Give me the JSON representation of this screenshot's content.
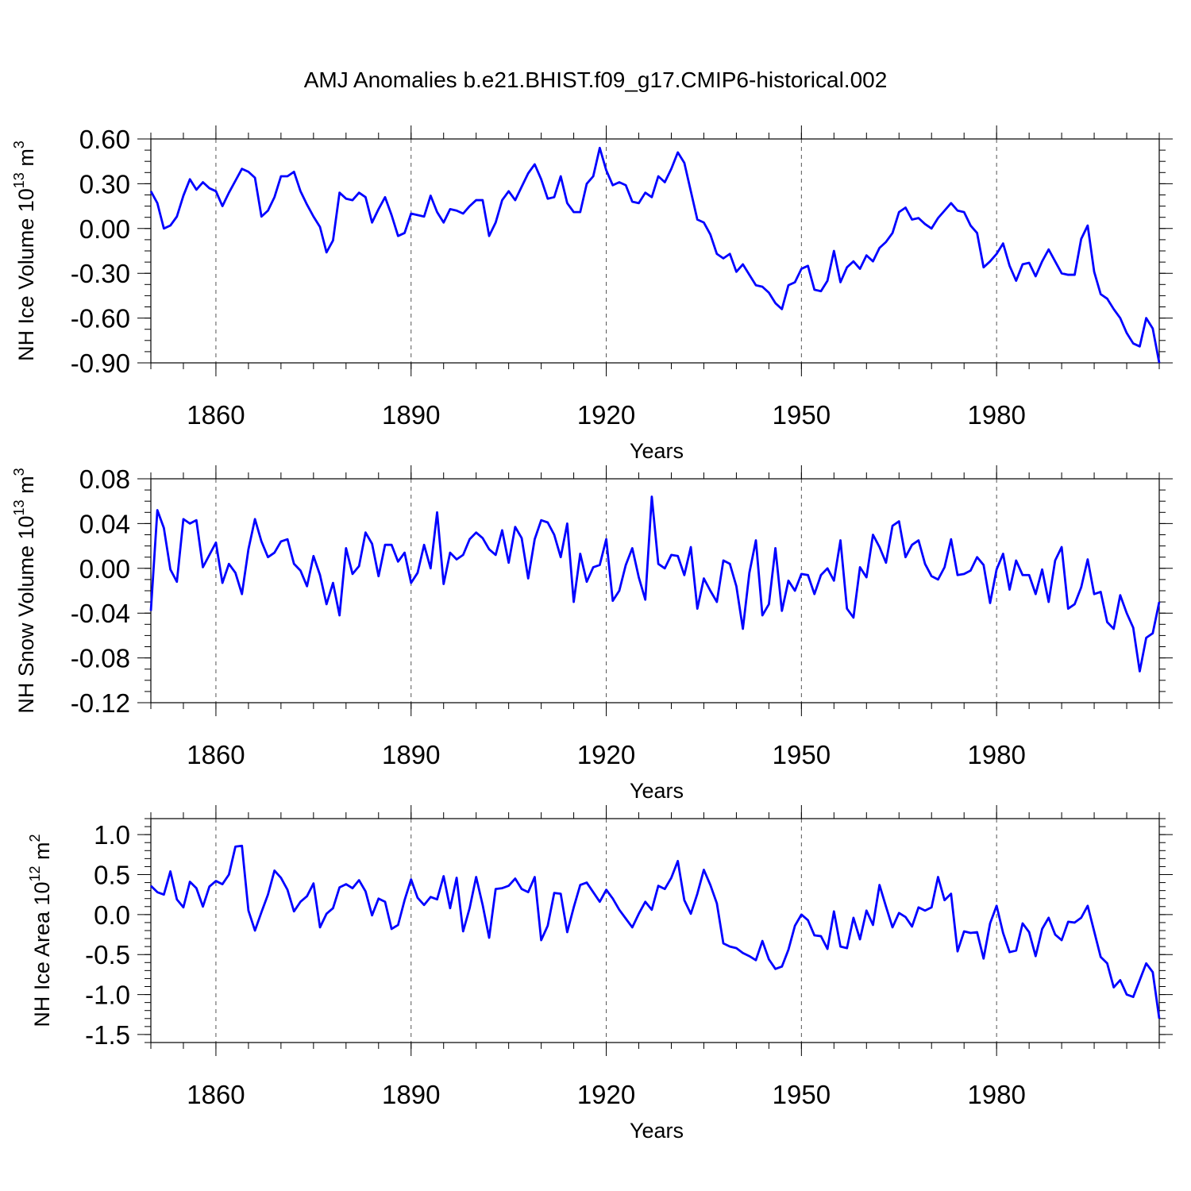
{
  "title": "AMJ Anomalies b.e21.BHIST.f09_g17.CMIP6-historical.002",
  "colors": {
    "line": "#0000ff",
    "axis": "#000000",
    "grid": "#555555"
  },
  "chart_data": [
    {
      "type": "line",
      "title": "AMJ Anomalies b.e21.BHIST.f09_g17.CMIP6-historical.002",
      "xlabel": "Years",
      "ylabel": {
        "base": "NH Ice Volume 10",
        "exp1": "13",
        "mid": " m",
        "exp2": "3"
      },
      "xlim": [
        1850,
        2005
      ],
      "ylim": [
        -0.9,
        0.6
      ],
      "xticks": [
        1860,
        1890,
        1920,
        1950,
        1980
      ],
      "xtick_labels": [
        "1860",
        "1890",
        "1920",
        "1950",
        "1980"
      ],
      "yticks": [
        0.6,
        0.3,
        0.0,
        -0.3,
        -0.6,
        -0.9
      ],
      "ytick_labels": [
        "0.60",
        "0.30",
        "0.00",
        "-0.30",
        "-0.60",
        "-0.90"
      ],
      "yminor_step": 0.075,
      "grid": "vertical dashed at major x ticks",
      "x_start": 1850,
      "values": [
        0.25,
        0.17,
        0.0,
        0.02,
        0.08,
        0.22,
        0.33,
        0.26,
        0.31,
        0.27,
        0.25,
        0.15,
        0.24,
        0.32,
        0.4,
        0.38,
        0.34,
        0.08,
        0.12,
        0.21,
        0.35,
        0.35,
        0.38,
        0.25,
        0.16,
        0.08,
        0.01,
        -0.16,
        -0.08,
        0.24,
        0.2,
        0.19,
        0.24,
        0.21,
        0.04,
        0.13,
        0.21,
        0.09,
        -0.05,
        -0.03,
        0.1,
        0.09,
        0.08,
        0.22,
        0.11,
        0.04,
        0.13,
        0.12,
        0.1,
        0.15,
        0.19,
        0.19,
        -0.05,
        0.04,
        0.19,
        0.25,
        0.19,
        0.28,
        0.37,
        0.43,
        0.33,
        0.2,
        0.21,
        0.35,
        0.17,
        0.11,
        0.11,
        0.3,
        0.35,
        0.54,
        0.39,
        0.29,
        0.31,
        0.29,
        0.18,
        0.17,
        0.24,
        0.21,
        0.35,
        0.31,
        0.4,
        0.51,
        0.44,
        0.25,
        0.06,
        0.04,
        -0.04,
        -0.17,
        -0.2,
        -0.17,
        -0.29,
        -0.24,
        -0.31,
        -0.38,
        -0.39,
        -0.43,
        -0.5,
        -0.54,
        -0.38,
        -0.36,
        -0.27,
        -0.25,
        -0.41,
        -0.42,
        -0.35,
        -0.15,
        -0.36,
        -0.26,
        -0.22,
        -0.27,
        -0.18,
        -0.22,
        -0.13,
        -0.09,
        -0.03,
        0.11,
        0.14,
        0.06,
        0.07,
        0.03,
        0.0,
        0.07,
        0.12,
        0.17,
        0.12,
        0.11,
        0.02,
        -0.03,
        -0.26,
        -0.22,
        -0.17,
        -0.1,
        -0.25,
        -0.35,
        -0.24,
        -0.23,
        -0.32,
        -0.22,
        -0.14,
        -0.22,
        -0.3,
        -0.31,
        -0.31,
        -0.07,
        0.02,
        -0.29,
        -0.44,
        -0.47,
        -0.54,
        -0.6,
        -0.7,
        -0.77,
        -0.79,
        -0.6,
        -0.67,
        -0.9
      ]
    },
    {
      "type": "line",
      "xlabel": "Years",
      "ylabel": {
        "base": "NH Snow Volume 10",
        "exp1": "13",
        "mid": " m",
        "exp2": "3"
      },
      "xlim": [
        1850,
        2005
      ],
      "ylim": [
        -0.12,
        0.08
      ],
      "xticks": [
        1860,
        1890,
        1920,
        1950,
        1980
      ],
      "xtick_labels": [
        "1860",
        "1890",
        "1920",
        "1950",
        "1980"
      ],
      "yticks": [
        0.08,
        0.04,
        0.0,
        -0.04,
        -0.08,
        -0.12
      ],
      "ytick_labels": [
        "0.08",
        "0.04",
        "0.00",
        "-0.04",
        "-0.08",
        "-0.12"
      ],
      "yminor_step": 0.01,
      "grid": "vertical dashed at major x ticks",
      "x_start": 1850,
      "values": [
        -0.038,
        0.052,
        0.036,
        -0.001,
        -0.012,
        0.044,
        0.04,
        0.043,
        0.001,
        0.012,
        0.023,
        -0.013,
        0.004,
        -0.004,
        -0.023,
        0.017,
        0.044,
        0.024,
        0.01,
        0.014,
        0.024,
        0.026,
        0.004,
        -0.002,
        -0.016,
        0.011,
        -0.006,
        -0.032,
        -0.013,
        -0.042,
        0.018,
        -0.005,
        0.002,
        0.032,
        0.022,
        -0.007,
        0.021,
        0.021,
        0.006,
        0.014,
        -0.013,
        -0.004,
        0.021,
        0.0,
        0.05,
        -0.014,
        0.014,
        0.008,
        0.012,
        0.026,
        0.032,
        0.027,
        0.017,
        0.012,
        0.034,
        0.005,
        0.037,
        0.027,
        -0.009,
        0.026,
        0.043,
        0.041,
        0.03,
        0.01,
        0.04,
        -0.03,
        0.013,
        -0.012,
        0.001,
        0.003,
        0.026,
        -0.029,
        -0.02,
        0.003,
        0.018,
        -0.008,
        -0.028,
        0.064,
        0.004,
        0.0,
        0.012,
        0.011,
        -0.006,
        0.019,
        -0.036,
        -0.009,
        -0.02,
        -0.03,
        0.007,
        0.004,
        -0.016,
        -0.054,
        -0.004,
        0.025,
        -0.042,
        -0.032,
        0.018,
        -0.038,
        -0.011,
        -0.02,
        -0.005,
        -0.006,
        -0.023,
        -0.006,
        0.0,
        -0.011,
        0.025,
        -0.036,
        -0.044,
        0.001,
        -0.008,
        0.03,
        0.019,
        0.005,
        0.038,
        0.042,
        0.01,
        0.021,
        0.025,
        0.004,
        -0.007,
        -0.01,
        0.001,
        0.026,
        -0.006,
        -0.005,
        -0.002,
        0.01,
        0.003,
        -0.031,
        -0.001,
        0.013,
        -0.019,
        0.007,
        -0.006,
        -0.006,
        -0.023,
        -0.001,
        -0.03,
        0.007,
        0.019,
        -0.036,
        -0.032,
        -0.017,
        0.008,
        -0.023,
        -0.021,
        -0.048,
        -0.054,
        -0.024,
        -0.04,
        -0.053,
        -0.092,
        -0.062,
        -0.058,
        -0.03
      ]
    },
    {
      "type": "line",
      "xlabel": "Years",
      "ylabel": {
        "base": "NH Ice Area 10",
        "exp1": "12",
        "mid": " m",
        "exp2": "2"
      },
      "xlim": [
        1850,
        2005
      ],
      "ylim": [
        -1.6,
        1.2
      ],
      "xticks": [
        1860,
        1890,
        1920,
        1950,
        1980
      ],
      "xtick_labels": [
        "1860",
        "1890",
        "1920",
        "1950",
        "1980"
      ],
      "yticks": [
        1.0,
        0.5,
        0.0,
        -0.5,
        -1.0,
        -1.5
      ],
      "ytick_labels": [
        "1.0",
        "0.5",
        "0.0",
        "-0.5",
        "-1.0",
        "-1.5"
      ],
      "yminor_step": 0.1,
      "grid": "vertical dashed at major x ticks",
      "x_start": 1850,
      "values": [
        0.36,
        0.28,
        0.25,
        0.54,
        0.19,
        0.09,
        0.41,
        0.33,
        0.1,
        0.35,
        0.42,
        0.38,
        0.5,
        0.85,
        0.86,
        0.05,
        -0.2,
        0.03,
        0.25,
        0.55,
        0.46,
        0.31,
        0.04,
        0.16,
        0.23,
        0.39,
        -0.16,
        0.01,
        0.08,
        0.34,
        0.38,
        0.33,
        0.43,
        0.29,
        -0.01,
        0.2,
        0.16,
        -0.18,
        -0.13,
        0.18,
        0.44,
        0.21,
        0.12,
        0.22,
        0.19,
        0.48,
        0.08,
        0.46,
        -0.21,
        0.08,
        0.47,
        0.12,
        -0.29,
        0.32,
        0.33,
        0.36,
        0.45,
        0.32,
        0.28,
        0.47,
        -0.32,
        -0.14,
        0.27,
        0.26,
        -0.22,
        0.09,
        0.37,
        0.4,
        0.28,
        0.16,
        0.31,
        0.2,
        0.06,
        -0.05,
        -0.16,
        0.01,
        0.16,
        0.06,
        0.36,
        0.32,
        0.46,
        0.67,
        0.18,
        0.01,
        0.26,
        0.56,
        0.37,
        0.14,
        -0.36,
        -0.4,
        -0.42,
        -0.48,
        -0.52,
        -0.57,
        -0.33,
        -0.56,
        -0.68,
        -0.65,
        -0.44,
        -0.14,
        0.0,
        -0.07,
        -0.26,
        -0.27,
        -0.43,
        0.04,
        -0.4,
        -0.42,
        -0.04,
        -0.31,
        0.05,
        -0.13,
        0.37,
        0.1,
        -0.16,
        0.02,
        -0.03,
        -0.15,
        0.09,
        0.05,
        0.09,
        0.47,
        0.18,
        0.26,
        -0.46,
        -0.21,
        -0.23,
        -0.22,
        -0.55,
        -0.11,
        0.11,
        -0.23,
        -0.47,
        -0.45,
        -0.11,
        -0.22,
        -0.52,
        -0.18,
        -0.04,
        -0.25,
        -0.32,
        -0.09,
        -0.1,
        -0.04,
        0.11,
        -0.21,
        -0.53,
        -0.61,
        -0.91,
        -0.82,
        -1.0,
        -1.03,
        -0.82,
        -0.61,
        -0.72,
        -1.3
      ]
    }
  ]
}
